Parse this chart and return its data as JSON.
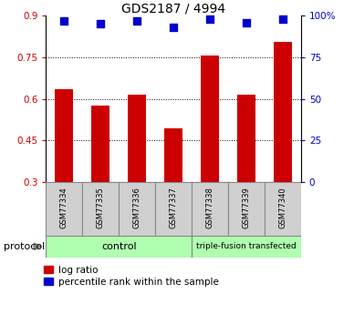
{
  "title": "GDS2187 / 4994",
  "samples": [
    "GSM77334",
    "GSM77335",
    "GSM77336",
    "GSM77337",
    "GSM77338",
    "GSM77339",
    "GSM77340"
  ],
  "log_ratio": [
    0.635,
    0.575,
    0.615,
    0.495,
    0.755,
    0.615,
    0.805
  ],
  "percentile_rank": [
    97,
    95,
    97,
    93,
    98,
    96,
    98
  ],
  "ylim_left": [
    0.3,
    0.9
  ],
  "ylim_right": [
    0,
    100
  ],
  "yticks_left": [
    0.3,
    0.45,
    0.6,
    0.75,
    0.9
  ],
  "yticks_right": [
    0,
    25,
    50,
    75,
    100
  ],
  "ytick_labels_left": [
    "0.3",
    "0.45",
    "0.6",
    "0.75",
    "0.9"
  ],
  "ytick_labels_right": [
    "0",
    "25",
    "50",
    "75",
    "100%"
  ],
  "bar_color": "#cc0000",
  "dot_color": "#0000cc",
  "bar_width": 0.5,
  "dot_size": 40,
  "n_control": 4,
  "n_treatment": 3,
  "control_label": "control",
  "treatment_label": "triple-fusion transfected",
  "protocol_label": "protocol",
  "legend_bar_label": "log ratio",
  "legend_dot_label": "percentile rank within the sample",
  "grid_color": "black",
  "grid_style": "dotted",
  "sample_box_color": "#d0d0d0",
  "sample_box_border": "#888888",
  "control_box_color": "#b0ffb0",
  "treatment_box_color": "#b0ffb0",
  "fig_bg": "#ffffff",
  "spine_color": "#000000"
}
